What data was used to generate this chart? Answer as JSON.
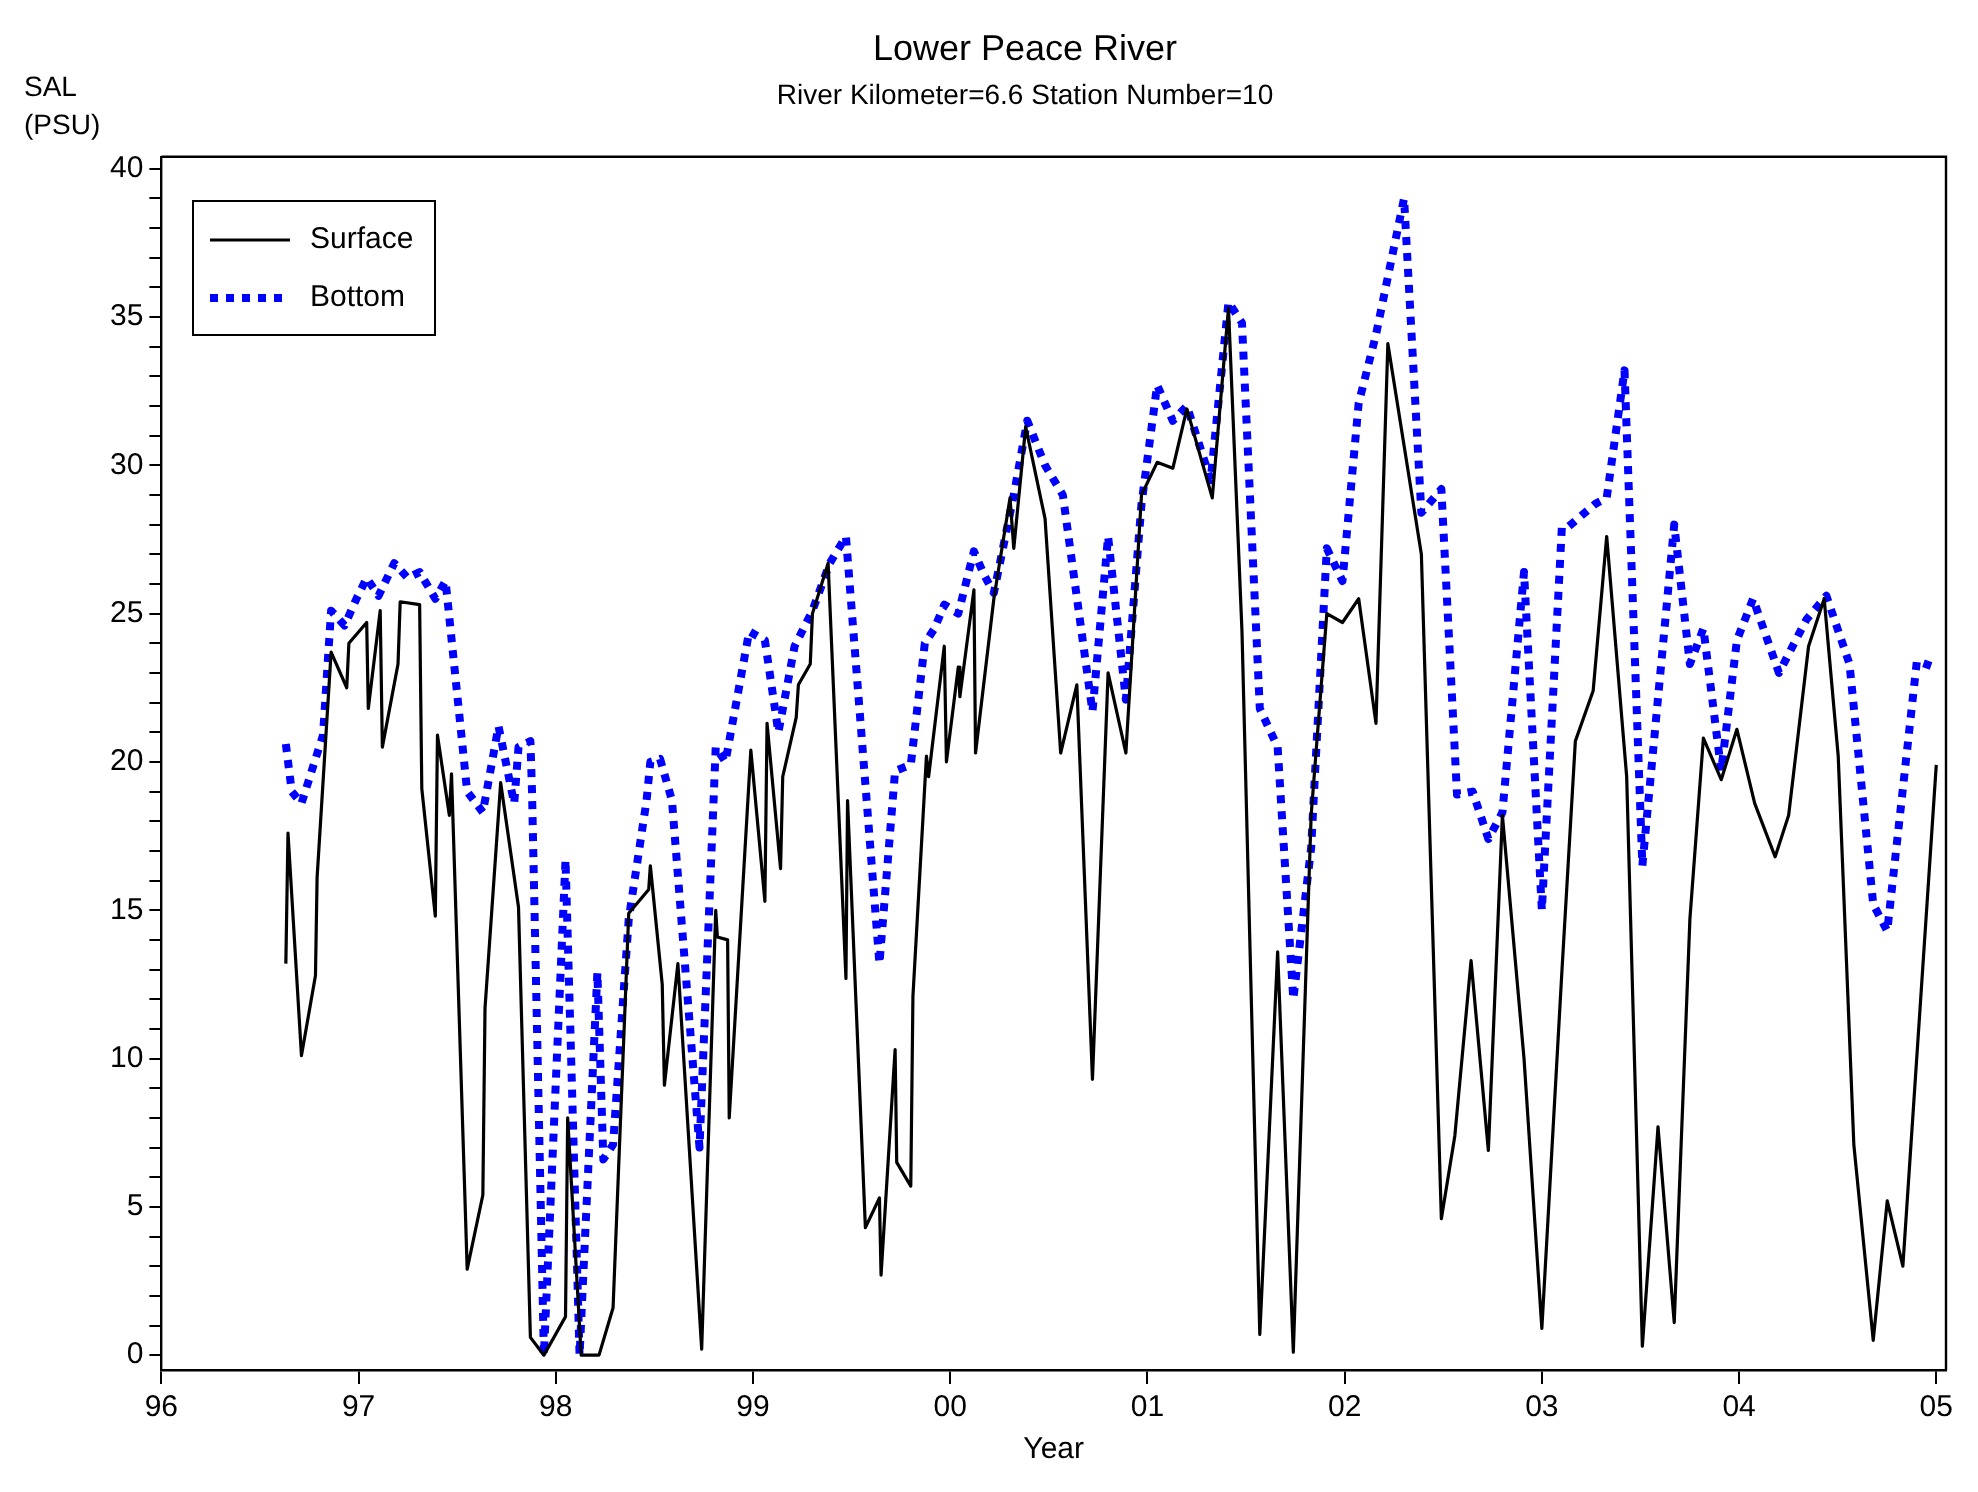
{
  "chart_data": {
    "type": "line",
    "title": "Lower Peace River",
    "subtitle": "River Kilometer=6.6 Station Number=10",
    "xlabel": "Year",
    "ylabel": "SAL (PSU)",
    "legend": "top left",
    "grid": false,
    "marker": "none",
    "xlim": [
      "1996-01-01",
      "2005-01-19"
    ],
    "xticks": [
      {
        "value": "1996",
        "label": "96"
      },
      {
        "value": "1997",
        "label": "97"
      },
      {
        "value": "1998",
        "label": "98"
      },
      {
        "value": "1999",
        "label": "99"
      },
      {
        "value": "2000",
        "label": "00"
      },
      {
        "value": "2001",
        "label": "01"
      },
      {
        "value": "2002",
        "label": "02"
      },
      {
        "value": "2003",
        "label": "03"
      },
      {
        "value": "2004",
        "label": "04"
      },
      {
        "value": "2005",
        "label": "05"
      }
    ],
    "ylim": [
      -0.5,
      40.4
    ],
    "yticks": [
      0,
      {
        "value": 1,
        "label": null
      },
      {
        "value": 2,
        "label": null
      },
      {
        "value": 3,
        "label": null
      },
      {
        "value": 4,
        "label": null
      },
      5,
      {
        "value": 6,
        "label": null
      },
      {
        "value": 7,
        "label": null
      },
      {
        "value": 8,
        "label": null
      },
      {
        "value": 9,
        "label": null
      },
      10,
      {
        "value": 11,
        "label": null
      },
      {
        "value": 12,
        "label": null
      },
      {
        "value": 13,
        "label": null
      },
      {
        "value": 14,
        "label": null
      },
      15,
      {
        "value": 16,
        "label": null
      },
      {
        "value": 17,
        "label": null
      },
      {
        "value": 18,
        "label": null
      },
      {
        "value": 19,
        "label": null
      },
      20,
      {
        "value": 21,
        "label": null
      },
      {
        "value": 22,
        "label": null
      },
      {
        "value": 23,
        "label": null
      },
      {
        "value": 24,
        "label": null
      },
      25,
      {
        "value": 26,
        "label": null
      },
      {
        "value": 27,
        "label": null
      },
      {
        "value": 28,
        "label": null
      },
      {
        "value": 29,
        "label": null
      },
      30,
      {
        "value": 31,
        "label": null
      },
      {
        "value": 32,
        "label": null
      },
      {
        "value": 33,
        "label": null
      },
      {
        "value": 34,
        "label": null
      },
      35,
      {
        "value": 36,
        "label": null
      },
      {
        "value": 37,
        "label": null
      },
      {
        "value": 38,
        "label": null
      },
      {
        "value": 39,
        "label": null
      },
      40
    ],
    "series": [
      {
        "name": "Surface",
        "color": "#000000",
        "line_style": "solid",
        "x": [
          "1996-08-19",
          "1996-08-23",
          "1996-09-17",
          "1996-10-13",
          "1996-10-16",
          "1996-11-11",
          "1996-12-10",
          "1996-12-14",
          "1997-01-16",
          "1997-01-19",
          "1997-02-10",
          "1997-02-14",
          "1997-03-15",
          "1997-03-19",
          "1997-04-24",
          "1997-04-28",
          "1997-05-23",
          "1997-05-27",
          "1997-06-18",
          "1997-06-22",
          "1997-07-21",
          "1997-08-19",
          "1997-08-23",
          "1997-09-21",
          "1997-10-24",
          "1997-11-15",
          "1997-12-10",
          "1998-01-19",
          "1998-01-23",
          "1998-02-17",
          "1998-03-22",
          "1998-04-17",
          "1998-05-16",
          "1998-06-22",
          "1998-06-25",
          "1998-07-17",
          "1998-07-21",
          "1998-08-15",
          "1998-09-28",
          "1998-10-24",
          "1998-10-27",
          "1998-11-15",
          "1998-11-18",
          "1998-12-28",
          "1999-01-23",
          "1999-01-27",
          "1999-02-21",
          "1999-02-25",
          "1999-03-22",
          "1999-03-26",
          "1999-04-17",
          "1999-04-21",
          "1999-05-20",
          "1999-06-22",
          "1999-06-25",
          "1999-07-28",
          "1999-08-23",
          "1999-08-26",
          "1999-09-21",
          "1999-09-24",
          "1999-10-20",
          "1999-10-24",
          "1999-11-18",
          "1999-11-22",
          "1999-12-21",
          "1999-12-25",
          "2000-01-16",
          "2000-01-19",
          "2000-02-14",
          "2000-02-17",
          "2000-03-22",
          "2000-04-21",
          "2000-04-28",
          "2000-05-20",
          "2000-06-25",
          "2000-07-24",
          "2000-08-23",
          "2000-09-21",
          "2000-10-20",
          "2000-11-22",
          "2000-12-21",
          "2001-01-19",
          "2001-02-17",
          "2001-03-15",
          "2001-05-01",
          "2001-05-31",
          "2001-06-25",
          "2001-07-28",
          "2001-08-30",
          "2001-09-28",
          "2001-10-31",
          "2001-11-29",
          "2001-12-28",
          "2002-01-27",
          "2002-02-28",
          "2002-03-22",
          "2002-05-23",
          "2002-06-29",
          "2002-07-24",
          "2002-08-23",
          "2002-09-24",
          "2002-10-20",
          "2002-11-29",
          "2003-01-01",
          "2003-02-07",
          "2003-03-04",
          "2003-04-06",
          "2003-05-01",
          "2003-06-07",
          "2003-07-06",
          "2003-08-04",
          "2003-09-03",
          "2003-10-02",
          "2003-10-27",
          "2003-11-29",
          "2003-12-28",
          "2004-01-30",
          "2004-03-08",
          "2004-04-02",
          "2004-05-09",
          "2004-06-07",
          "2004-07-03",
          "2004-08-01",
          "2004-09-06",
          "2004-10-02",
          "2004-10-31",
          "2005-01-01"
        ],
        "values": [
          13.2,
          17.6,
          10.1,
          12.8,
          16.1,
          23.7,
          22.5,
          24,
          24.7,
          21.8,
          25.1,
          20.5,
          23.3,
          25.4,
          25.3,
          19.1,
          14.8,
          20.9,
          18.2,
          19.6,
          2.9,
          5.4,
          11.7,
          19.3,
          15.1,
          0.6,
          0,
          1.3,
          8,
          0,
          0,
          1.6,
          14.9,
          15.7,
          16.5,
          12.5,
          9.1,
          13.2,
          0.2,
          15,
          14.1,
          14,
          8,
          20.4,
          15.3,
          21.3,
          16.4,
          19.5,
          21.5,
          22.6,
          23.3,
          25,
          26.7,
          12.7,
          18.7,
          4.3,
          5.3,
          2.7,
          10.3,
          6.5,
          5.7,
          12.1,
          20.2,
          19.5,
          23.9,
          20,
          23.2,
          22.2,
          25.8,
          20.3,
          25.5,
          28.9,
          27.2,
          31.3,
          28.2,
          20.3,
          22.6,
          9.3,
          23,
          20.3,
          29,
          30.1,
          29.9,
          31.9,
          28.9,
          35.3,
          24.4,
          0.7,
          13.6,
          0.1,
          18.2,
          25,
          24.7,
          25.5,
          21.3,
          34.1,
          27,
          4.6,
          7.4,
          13.3,
          6.9,
          18.2,
          10,
          0.9,
          12.9,
          20.7,
          22.4,
          27.6,
          19.5,
          0.3,
          7.7,
          1.1,
          14.7,
          20.8,
          19.4,
          21.1,
          18.6,
          16.8,
          18.2,
          23.9,
          25.5,
          20.2,
          7.1,
          0.5,
          5.2,
          3,
          19.9
        ]
      },
      {
        "name": "Bottom",
        "color": "#0000ff",
        "line_style": "dotted",
        "x": [
          "1996-08-19",
          "1996-08-30",
          "1996-09-17",
          "1996-10-13",
          "1996-10-27",
          "1996-11-11",
          "1996-12-06",
          "1996-12-28",
          "1997-01-16",
          "1997-02-07",
          "1997-03-08",
          "1997-04-02",
          "1997-04-24",
          "1997-05-23",
          "1997-06-11",
          "1997-07-21",
          "1997-08-19",
          "1997-09-17",
          "1997-10-16",
          "1997-10-24",
          "1997-11-15",
          "1997-11-18",
          "1997-12-10",
          "1998-01-19",
          "1998-02-14",
          "1998-03-19",
          "1998-03-30",
          "1998-04-17",
          "1998-05-16",
          "1998-06-18",
          "1998-06-25",
          "1998-07-13",
          "1998-08-04",
          "1998-09-24",
          "1998-10-24",
          "1998-11-11",
          "1998-12-25",
          "1999-01-23",
          "1999-02-17",
          "1999-03-19",
          "1999-04-21",
          "1999-05-23",
          "1999-06-22",
          "1999-08-23",
          "1999-09-21",
          "1999-10-20",
          "1999-11-15",
          "1999-12-03",
          "1999-12-21",
          "2000-01-16",
          "2000-02-14",
          "2000-03-04",
          "2000-03-22",
          "2000-04-28",
          "2000-05-23",
          "2000-06-25",
          "2000-07-28",
          "2000-09-21",
          "2000-10-20",
          "2000-11-22",
          "2000-12-21",
          "2001-01-19",
          "2001-02-17",
          "2001-03-15",
          "2001-04-28",
          "2001-05-31",
          "2001-06-25",
          "2001-07-28",
          "2001-08-30",
          "2001-09-28",
          "2001-10-31",
          "2001-11-29",
          "2001-12-28",
          "2002-01-27",
          "2002-02-28",
          "2002-04-21",
          "2002-05-23",
          "2002-06-29",
          "2002-07-28",
          "2002-08-26",
          "2002-09-24",
          "2002-10-20",
          "2002-11-29",
          "2003-01-01",
          "2003-02-07",
          "2003-02-17",
          "2003-04-10",
          "2003-05-01",
          "2003-06-03",
          "2003-07-06",
          "2003-09-03",
          "2003-10-02",
          "2003-10-27",
          "2003-11-29",
          "2003-12-28",
          "2004-01-27",
          "2004-03-15",
          "2004-05-05",
          "2004-06-11",
          "2004-07-24",
          "2004-09-06",
          "2004-10-02",
          "2004-11-26",
          "2004-12-28"
        ],
        "values": [
          20.6,
          19,
          18.6,
          20.1,
          20.9,
          25.1,
          24.6,
          25.5,
          26.2,
          25.6,
          26.7,
          26.2,
          26.4,
          25.5,
          26.1,
          19,
          18.3,
          21.2,
          18.6,
          20.5,
          20.7,
          19,
          0,
          16.7,
          0,
          12.9,
          6.6,
          7.1,
          14.7,
          18.7,
          20,
          20.1,
          18.7,
          7,
          20.5,
          20,
          24.4,
          24.1,
          21,
          23.9,
          25.1,
          26.7,
          27.6,
          13.2,
          19.7,
          19.9,
          24,
          24.5,
          25.3,
          25,
          27.1,
          26.3,
          25.7,
          29,
          31.5,
          30,
          29,
          21.7,
          27.6,
          22.1,
          28.7,
          32.7,
          31.5,
          32,
          29.5,
          35.5,
          34.8,
          21.8,
          20.5,
          12,
          17.1,
          27.2,
          26.1,
          32.1,
          34.4,
          39,
          28.4,
          29.2,
          18.9,
          19,
          17.4,
          18.3,
          26.4,
          15,
          27.9,
          27.9,
          28.7,
          28.9,
          33.2,
          16.5,
          28,
          23.3,
          24.5,
          19.7,
          24.1,
          25.5,
          23,
          24.8,
          25.6,
          23.3,
          15.2,
          14.3,
          23.4,
          23.2
        ]
      }
    ]
  }
}
